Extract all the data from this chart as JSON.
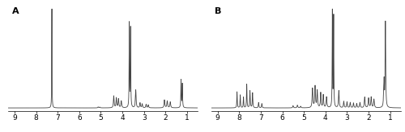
{
  "panel_A_label": "A",
  "panel_B_label": "B",
  "x_ticks": [
    9,
    8,
    7,
    6,
    5,
    4,
    3,
    2,
    1
  ],
  "background_color": "#ffffff",
  "line_color": "#444444",
  "line_width": 0.6,
  "label_fontsize": 6.5,
  "panel_label_fontsize": 8
}
